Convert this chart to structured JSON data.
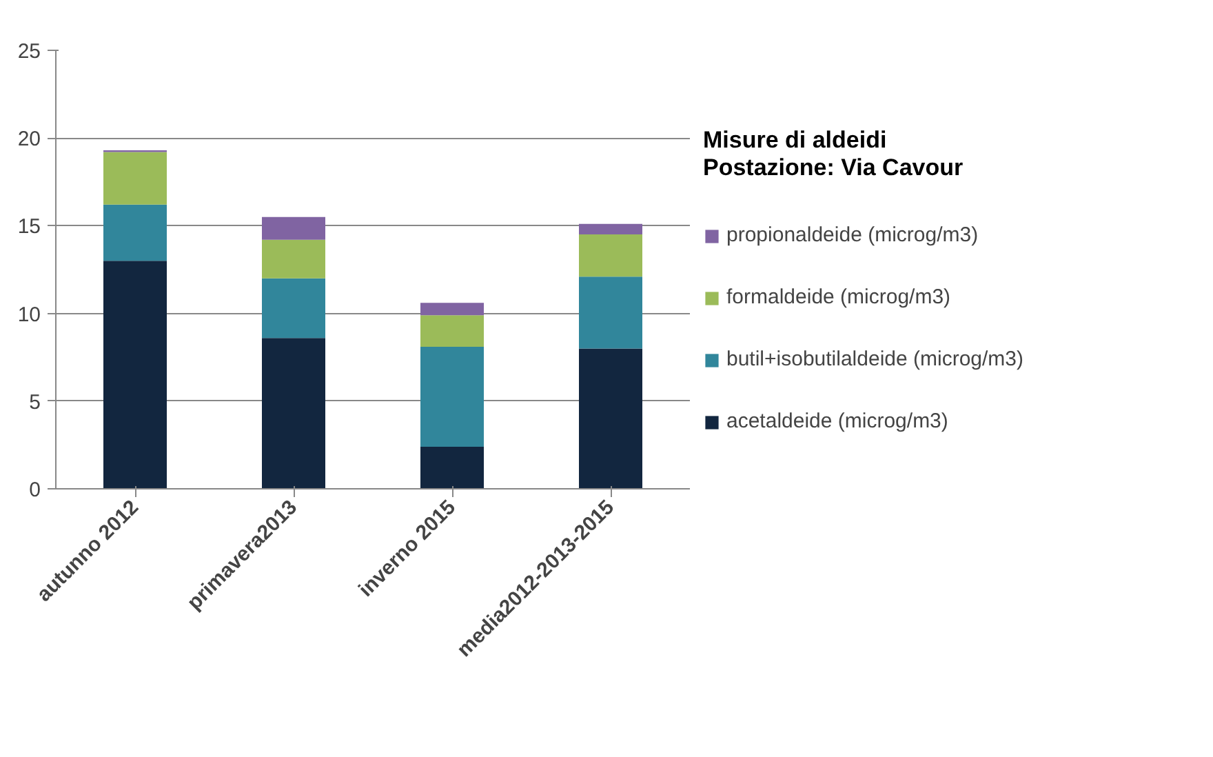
{
  "chart_data": {
    "type": "bar",
    "stacked": true,
    "title": "Misure di aldeidi\nPostazione: Via Cavour",
    "categories": [
      "autunno 2012",
      "primavera2013",
      "inverno 2015",
      "media2012-2013-2015"
    ],
    "series": [
      {
        "name": "acetaldeide (microg/m3)",
        "color": "#12263f",
        "values": [
          13.0,
          8.6,
          2.4,
          8.0
        ]
      },
      {
        "name": "butil+isobutilaldeide (microg/m3)",
        "color": "#31869b",
        "values": [
          3.2,
          3.4,
          5.7,
          4.1
        ]
      },
      {
        "name": "formaldeide (microg/m3)",
        "color": "#9bbb59",
        "values": [
          3.0,
          2.2,
          1.8,
          2.4
        ]
      },
      {
        "name": "propionaldeide (microg/m3)",
        "color": "#8064a2",
        "values": [
          0.1,
          1.3,
          0.7,
          0.6
        ]
      }
    ],
    "ylim": [
      0,
      25
    ],
    "yticks": [
      0,
      5,
      10,
      15,
      20,
      25
    ],
    "grid": "y",
    "legend": "right"
  }
}
